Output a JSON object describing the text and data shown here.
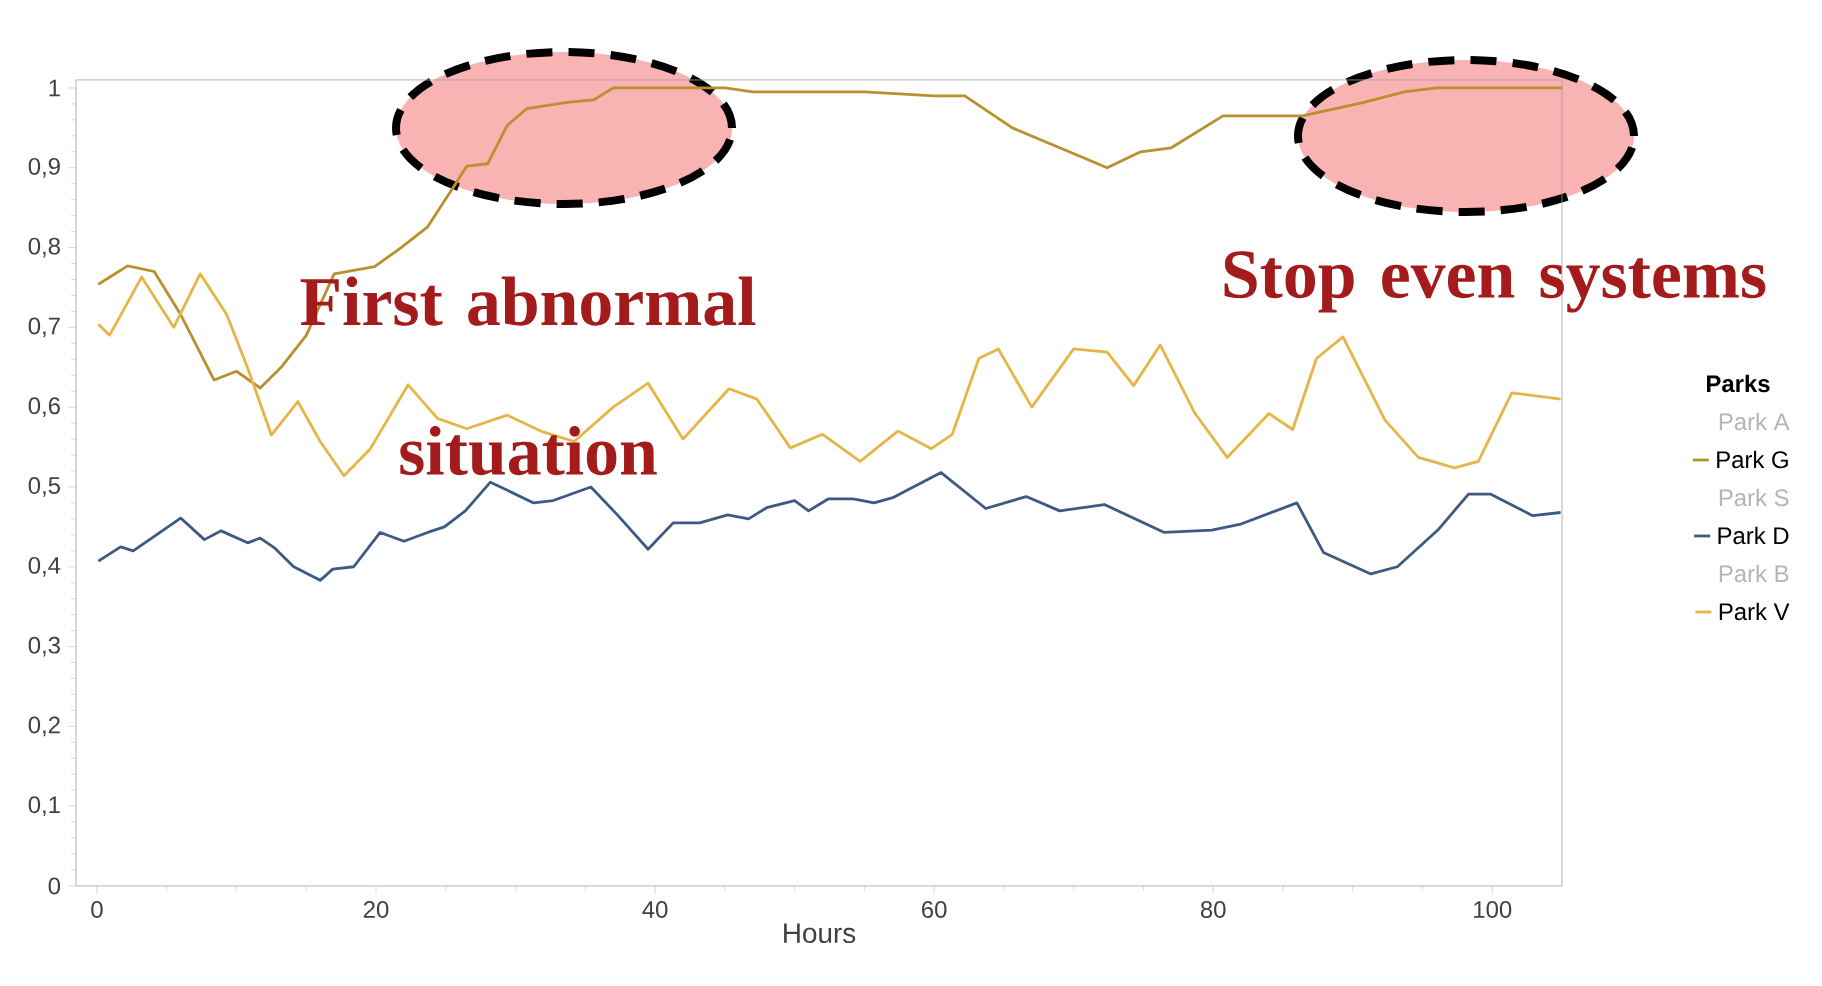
{
  "chart_data": {
    "type": "line",
    "xlabel": "Hours",
    "legend_title": "Parks",
    "xlim": [
      -1.5,
      105
    ],
    "ylim": [
      0,
      1.01
    ],
    "xticks": [
      0,
      20,
      40,
      60,
      80,
      100
    ],
    "yticks": [
      0,
      {
        "value": 0.1,
        "label": "0,1"
      },
      {
        "value": 0.2,
        "label": "0,2"
      },
      {
        "value": 0.3,
        "label": "0,3"
      },
      {
        "value": 0.4,
        "label": "0,4"
      },
      {
        "value": 0.5,
        "label": "0,5"
      },
      {
        "value": 0.6,
        "label": "0,6"
      },
      {
        "value": 0.7,
        "label": "0,7"
      },
      {
        "value": 0.8,
        "label": "0,8"
      },
      {
        "value": 0.9,
        "label": "0,9"
      },
      1
    ],
    "legend": "right",
    "grid": false,
    "marker": "none",
    "line_style": "solid",
    "annotations": [
      "First abnormal situation",
      "Stop even systems"
    ],
    "series": [
      {
        "name": "Park A"
      },
      {
        "name": "Park G",
        "color": "#b8912e",
        "x": [
          0.1,
          2.2,
          4.1,
          6,
          8.4,
          10,
          11.7,
          13.2,
          15,
          17,
          19.9,
          21.8,
          23.7,
          25.6,
          26.5,
          28,
          29.4,
          30.8,
          33.7,
          35.6,
          37,
          40,
          45,
          47,
          55,
          60,
          62.2,
          65.6,
          69,
          72.4,
          74.8,
          77,
          80.7,
          84.5,
          86.4,
          90.8,
          93.7,
          96,
          98,
          100,
          105
        ],
        "values": [
          0.754,
          0.777,
          0.77,
          0.716,
          0.634,
          0.645,
          0.624,
          0.65,
          0.69,
          0.767,
          0.776,
          0.8,
          0.826,
          0.877,
          0.902,
          0.905,
          0.953,
          0.974,
          0.982,
          0.985,
          1.0,
          1.0,
          1.0,
          0.995,
          0.995,
          0.99,
          0.99,
          0.95,
          0.925,
          0.9,
          0.92,
          0.925,
          0.965,
          0.965,
          0.965,
          0.982,
          0.995,
          1.0,
          1.0,
          1.0,
          1.0
        ]
      },
      {
        "name": "Park S"
      },
      {
        "name": "Park D",
        "color": "#3d5a80",
        "x": [
          0.1,
          1.7,
          2.6,
          6,
          7.7,
          8.9,
          10.8,
          11.7,
          12.7,
          14.1,
          16,
          16.9,
          18.4,
          20.3,
          22,
          23.7,
          24.9,
          26.4,
          28.2,
          31.3,
          32.7,
          35.4,
          37.3,
          39.5,
          41.3,
          43.2,
          45.2,
          46.7,
          48,
          50,
          51,
          52.4,
          54.2,
          55.7,
          57.1,
          60.5,
          63.7,
          66.6,
          69,
          72.2,
          76.5,
          79.9,
          81.9,
          86,
          87.9,
          91.3,
          93.2,
          96.1,
          98.3,
          99.9,
          102.9,
          104.9
        ],
        "values": [
          0.407,
          0.425,
          0.42,
          0.461,
          0.434,
          0.445,
          0.43,
          0.436,
          0.424,
          0.4,
          0.383,
          0.397,
          0.4,
          0.443,
          0.432,
          0.443,
          0.45,
          0.47,
          0.506,
          0.48,
          0.483,
          0.5,
          0.465,
          0.422,
          0.455,
          0.455,
          0.465,
          0.46,
          0.474,
          0.483,
          0.47,
          0.485,
          0.485,
          0.48,
          0.487,
          0.518,
          0.473,
          0.488,
          0.47,
          0.478,
          0.443,
          0.446,
          0.453,
          0.48,
          0.418,
          0.391,
          0.4,
          0.446,
          0.491,
          0.491,
          0.464,
          0.468
        ]
      },
      {
        "name": "Park B"
      },
      {
        "name": "Park V",
        "color": "#e6b548",
        "x": [
          0.1,
          0.9,
          3.2,
          5.5,
          7.4,
          9.3,
          10.8,
          12.5,
          14.4,
          16,
          17.7,
          19.6,
          22.3,
          24.4,
          26.5,
          29.4,
          31.8,
          34.2,
          37,
          39.5,
          42,
          45.3,
          47.3,
          49.7,
          52,
          54.7,
          57.4,
          59.8,
          61.3,
          63.2,
          64.6,
          67,
          70,
          72.4,
          74.3,
          76.2,
          78.7,
          81,
          84,
          85.7,
          87.4,
          89.3,
          92.3,
          94.7,
          97.3,
          99,
          101.4,
          104.9
        ],
        "values": [
          0.704,
          0.69,
          0.763,
          0.7,
          0.767,
          0.716,
          0.649,
          0.565,
          0.607,
          0.557,
          0.514,
          0.548,
          0.628,
          0.586,
          0.573,
          0.59,
          0.57,
          0.557,
          0.6,
          0.63,
          0.56,
          0.623,
          0.61,
          0.549,
          0.566,
          0.532,
          0.57,
          0.548,
          0.566,
          0.661,
          0.673,
          0.6,
          0.673,
          0.669,
          0.627,
          0.678,
          0.592,
          0.537,
          0.592,
          0.572,
          0.661,
          0.688,
          0.584,
          0.537,
          0.524,
          0.532,
          0.618,
          0.61
        ]
      }
    ]
  }
}
